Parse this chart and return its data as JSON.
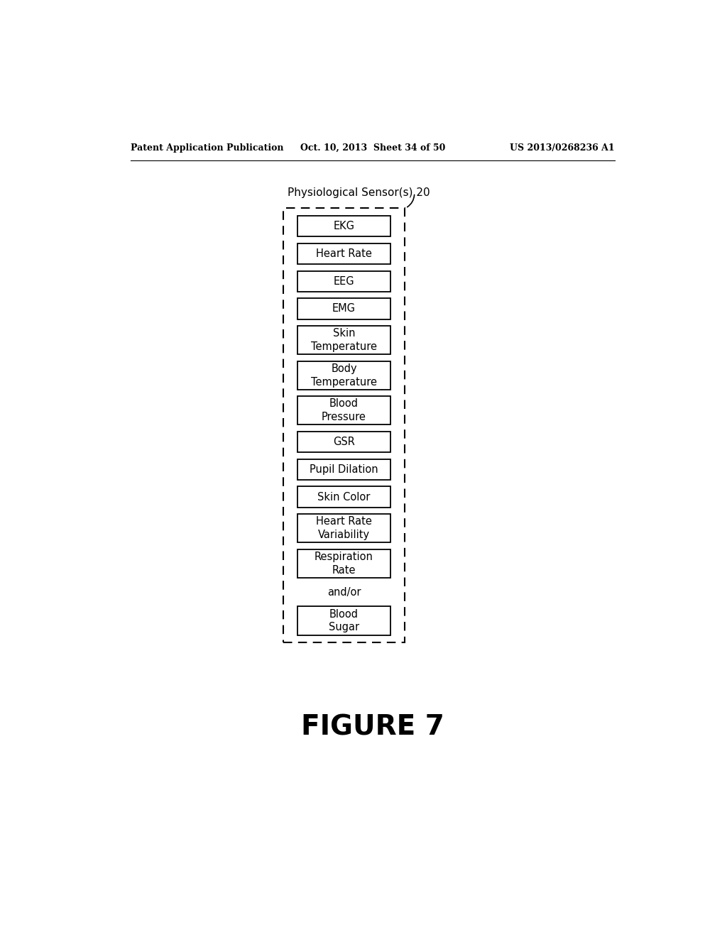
{
  "header_left": "Patent Application Publication",
  "header_mid": "Oct. 10, 2013  Sheet 34 of 50",
  "header_right": "US 2013/0268236 A1",
  "figure_label": "FIGURE 7",
  "sensor_label": "Physiological Sensor(s) 20",
  "boxes": [
    "EKG",
    "Heart Rate",
    "EEG",
    "EMG",
    "Skin\nTemperature",
    "Body\nTemperature",
    "Blood\nPressure",
    "GSR",
    "Pupil Dilation",
    "Skin Color",
    "Heart Rate\nVariability",
    "Respiration\nRate"
  ],
  "and_or_label": "and/or",
  "last_box": "Blood\nSugar",
  "bg_color": "#ffffff",
  "text_color": "#000000",
  "box_color": "#ffffff",
  "box_edge_color": "#000000",
  "dashed_border_color": "#000000"
}
